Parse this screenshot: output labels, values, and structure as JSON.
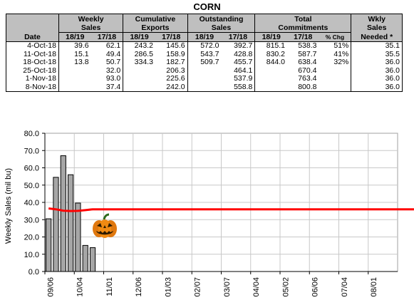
{
  "title": "CORN",
  "table": {
    "group_headers": {
      "weekly_sales": [
        "Weekly",
        "Sales"
      ],
      "cumulative_exports": [
        "Cumulative",
        "Exports"
      ],
      "outstanding_sales": [
        "Outstanding",
        "Sales"
      ],
      "total_commitments": [
        "Total",
        "Commitments"
      ],
      "wkly_sales_needed": [
        "Wkly",
        "Sales",
        "Needed *"
      ]
    },
    "date_header": "Date",
    "year_a": "18/19",
    "year_b": "17/18",
    "pct_chg": "% Chg",
    "rows": [
      {
        "date": "4-Oct-18",
        "ws_a": "39.6",
        "ws_b": "62.1",
        "ce_a": "243.2",
        "ce_b": "145.6",
        "os_a": "572.0",
        "os_b": "392.7",
        "tc_a": "815.1",
        "tc_b": "538.3",
        "pct": "51%",
        "need": "35.1"
      },
      {
        "date": "11-Oct-18",
        "ws_a": "15.1",
        "ws_b": "49.4",
        "ce_a": "286.5",
        "ce_b": "158.9",
        "os_a": "543.7",
        "os_b": "428.8",
        "tc_a": "830.2",
        "tc_b": "587.7",
        "pct": "41%",
        "need": "35.5"
      },
      {
        "date": "18-Oct-18",
        "ws_a": "13.8",
        "ws_b": "50.7",
        "ce_a": "334.3",
        "ce_b": "182.7",
        "os_a": "509.7",
        "os_b": "455.7",
        "tc_a": "844.0",
        "tc_b": "638.4",
        "pct": "32%",
        "need": "36.0"
      },
      {
        "date": "25-Oct-18",
        "ws_a": "",
        "ws_b": "32.0",
        "ce_a": "",
        "ce_b": "206.3",
        "os_a": "",
        "os_b": "464.1",
        "tc_a": "",
        "tc_b": "670.4",
        "pct": "",
        "need": "36.0"
      },
      {
        "date": "1-Nov-18",
        "ws_a": "",
        "ws_b": "93.0",
        "ce_a": "",
        "ce_b": "225.6",
        "os_a": "",
        "os_b": "537.9",
        "tc_a": "",
        "tc_b": "763.4",
        "pct": "",
        "need": "36.0"
      },
      {
        "date": "8-Nov-18",
        "ws_a": "",
        "ws_b": "37.4",
        "ce_a": "",
        "ce_b": "242.0",
        "os_a": "",
        "os_b": "558.8",
        "tc_a": "",
        "tc_b": "800.8",
        "pct": "",
        "need": "36.0"
      }
    ]
  },
  "chart_data": {
    "type": "bar",
    "ylabel": "Weekly Sales (mil bu)",
    "ylim": [
      0,
      80
    ],
    "yticks": [
      "0.0",
      "10.0",
      "20.0",
      "30.0",
      "40.0",
      "50.0",
      "60.0",
      "70.0",
      "80.0"
    ],
    "xticks": [
      "09/06",
      "10/04",
      "11/01",
      "12/06",
      "01/03",
      "02/07",
      "03/07",
      "04/04",
      "05/02",
      "06/06",
      "07/04",
      "08/01"
    ],
    "grid": true,
    "bars": [
      30.5,
      54.5,
      67.0,
      56.0,
      39.6,
      15.1,
      13.8
    ],
    "needed_line": [
      36.5,
      36.0,
      35.2,
      35.0,
      35.1,
      35.5,
      36.0,
      36.0,
      36.0,
      36.0,
      36.0,
      36.0,
      36.0,
      36.0,
      36.0,
      36.0,
      36.0,
      36.0,
      36.0,
      36.0,
      36.0,
      36.0,
      36.0,
      36.0,
      36.0,
      36.0,
      36.0,
      36.0,
      36.0,
      36.0,
      36.0,
      36.0,
      36.0,
      36.0,
      36.0,
      36.0,
      36.0,
      36.0,
      36.0,
      36.0,
      36.0,
      36.0,
      36.0,
      36.0,
      36.0,
      36.0,
      36.0,
      36.0,
      36.0,
      36.0,
      36.0,
      36.0
    ],
    "bar_color": "#a6a6a6",
    "line_color": "#ff0000",
    "decoration": "pumpkin-icon"
  }
}
